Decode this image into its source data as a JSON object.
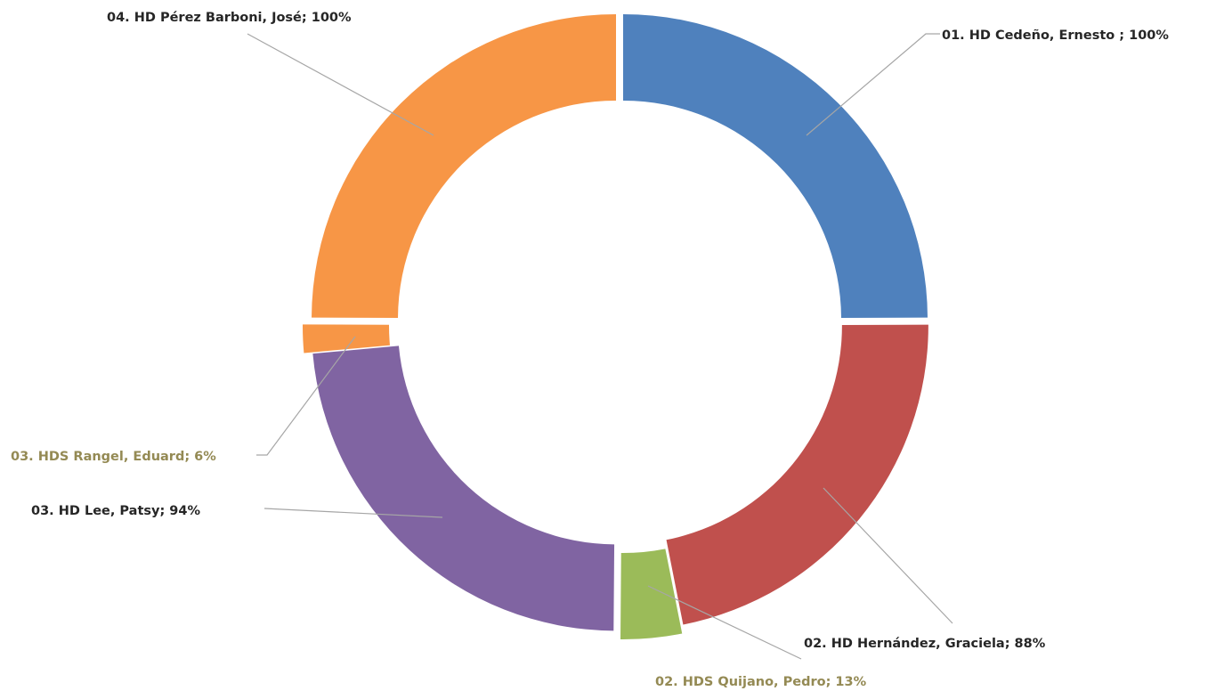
{
  "chart_data": {
    "type": "donut",
    "title": "",
    "slices": [
      {
        "label": "01. HD Cedeño, Ernesto ; 100%",
        "name": "01. HD Cedeño, Ernesto",
        "pct": 100,
        "value": 100,
        "color": "#4f81bd",
        "label_color": "#262626"
      },
      {
        "label": "02. HD Hernández, Graciela; 88%",
        "name": "02. HD Hernández, Graciela",
        "pct": 88,
        "value": 88,
        "color": "#c0504d",
        "label_color": "#262626"
      },
      {
        "label": "02. HDS Quijano, Pedro; 13%",
        "name": "02. HDS Quijano, Pedro",
        "pct": 13,
        "value": 13,
        "color": "#9bbb59",
        "label_color": "#948a54"
      },
      {
        "label": "03. HD Lee, Patsy; 94%",
        "name": "03. HD Lee, Patsy",
        "pct": 94,
        "value": 94,
        "color": "#8064a2",
        "label_color": "#262626"
      },
      {
        "label": "03. HDS Rangel, Eduard; 6%",
        "name": "03. HDS Rangel, Eduard",
        "pct": 6,
        "value": 6,
        "color": "#f79646",
        "label_color": "#948a54"
      },
      {
        "label": "04. HD Pérez Barboni, José; 100%",
        "name": "04. HD Pérez Barboni, José",
        "pct": 100,
        "value": 100,
        "color": "#f79646",
        "label_color": "#262626"
      }
    ]
  }
}
